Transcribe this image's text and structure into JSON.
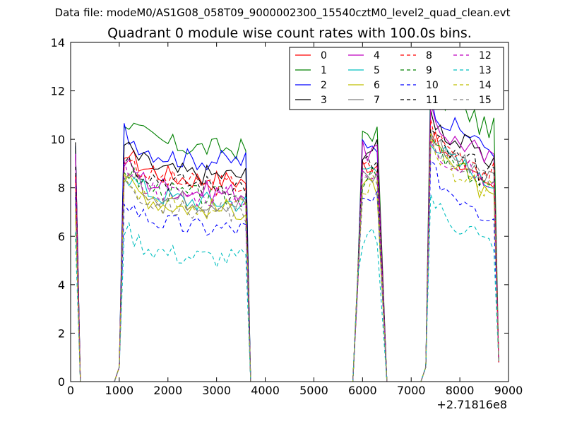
{
  "chart_data": {
    "type": "line",
    "suptitle": "Data file: modeM0/AS1G08_058T09_9000002300_15540cztM0_level2_quad_clean.evt",
    "title": "Quadrant 0 module wise count rates with 100.0s bins.",
    "xlabel": "",
    "ylabel": "",
    "xlim": [
      0,
      9000
    ],
    "ylim": [
      0,
      14
    ],
    "x_offset_label": "+2.71816e8",
    "xticks": [
      0,
      1000,
      2000,
      3000,
      4000,
      5000,
      6000,
      7000,
      8000,
      9000
    ],
    "xtick_labels": [
      "0",
      "1000",
      "2000",
      "3000",
      "4000",
      "5000",
      "6000",
      "7000",
      "8000",
      "9000"
    ],
    "yticks": [
      0,
      2,
      4,
      6,
      8,
      10,
      12,
      14
    ],
    "ytick_labels": [
      "0",
      "2",
      "4",
      "6",
      "8",
      "10",
      "12",
      "14"
    ],
    "legend_location": "upper-right",
    "segments": {
      "seg1": [
        0,
        100,
        200
      ],
      "seg2": [
        1000,
        1100,
        1200,
        1300,
        1400,
        1500,
        1600,
        1700,
        1800,
        1900,
        2000,
        2100,
        2200,
        2300,
        2400,
        2500,
        2600,
        2700,
        2800,
        2900,
        3000,
        3100,
        3200,
        3300,
        3400,
        3500,
        3600
      ],
      "seg3": [
        5900,
        6000,
        6100,
        6200,
        6300
      ],
      "seg4": [
        7300,
        7400,
        7500,
        7600,
        7700,
        7800,
        7900,
        8000,
        8100,
        8200,
        8300,
        8400,
        8500,
        8600,
        8700
      ]
    },
    "series": [
      {
        "name": "0",
        "color": "#ff0000",
        "dash": "solid",
        "levels": [
          8.3,
          8.3,
          9.0,
          8.6
        ]
      },
      {
        "name": "1",
        "color": "#008000",
        "dash": "solid",
        "levels": [
          9.6,
          9.6,
          10.3,
          10.8
        ]
      },
      {
        "name": "2",
        "color": "#0000ff",
        "dash": "solid",
        "levels": [
          9.6,
          9.1,
          9.9,
          10.0
        ]
      },
      {
        "name": "3",
        "color": "#000000",
        "dash": "solid",
        "levels": [
          9.7,
          8.5,
          9.6,
          9.5
        ]
      },
      {
        "name": "4",
        "color": "#bf00bf",
        "dash": "solid",
        "levels": [
          9.3,
          7.8,
          9.5,
          9.5
        ]
      },
      {
        "name": "5",
        "color": "#00bfbf",
        "dash": "solid",
        "levels": [
          7.6,
          7.4,
          8.8,
          8.6
        ]
      },
      {
        "name": "6",
        "color": "#bfbf00",
        "dash": "solid",
        "levels": [
          7.0,
          7.1,
          8.0,
          8.3
        ]
      },
      {
        "name": "7",
        "color": "#808080",
        "dash": "solid",
        "levels": [
          7.5,
          7.4,
          8.4,
          8.8
        ]
      },
      {
        "name": "8",
        "color": "#ff0000",
        "dash": "dashed",
        "levels": [
          8.4,
          8.1,
          8.8,
          9.0
        ]
      },
      {
        "name": "9",
        "color": "#008000",
        "dash": "dashed",
        "levels": [
          7.6,
          7.6,
          8.4,
          8.4
        ]
      },
      {
        "name": "10",
        "color": "#0000ff",
        "dash": "dashed",
        "levels": [
          7.4,
          6.3,
          7.4,
          7.3
        ]
      },
      {
        "name": "11",
        "color": "#000000",
        "dash": "dashed",
        "levels": [
          8.9,
          8.1,
          9.0,
          8.8
        ]
      },
      {
        "name": "12",
        "color": "#bf00bf",
        "dash": "dashed",
        "levels": [
          8.5,
          7.6,
          8.4,
          8.5
        ]
      },
      {
        "name": "13",
        "color": "#00bfbf",
        "dash": "dashed",
        "levels": [
          6.0,
          5.1,
          5.9,
          6.1
        ]
      },
      {
        "name": "14",
        "color": "#bfbf00",
        "dash": "dashed",
        "levels": [
          7.0,
          7.1,
          8.1,
          8.2
        ]
      },
      {
        "name": "15",
        "color": "#808080",
        "dash": "dashed",
        "levels": [
          7.8,
          7.0,
          8.3,
          8.6
        ]
      }
    ]
  }
}
